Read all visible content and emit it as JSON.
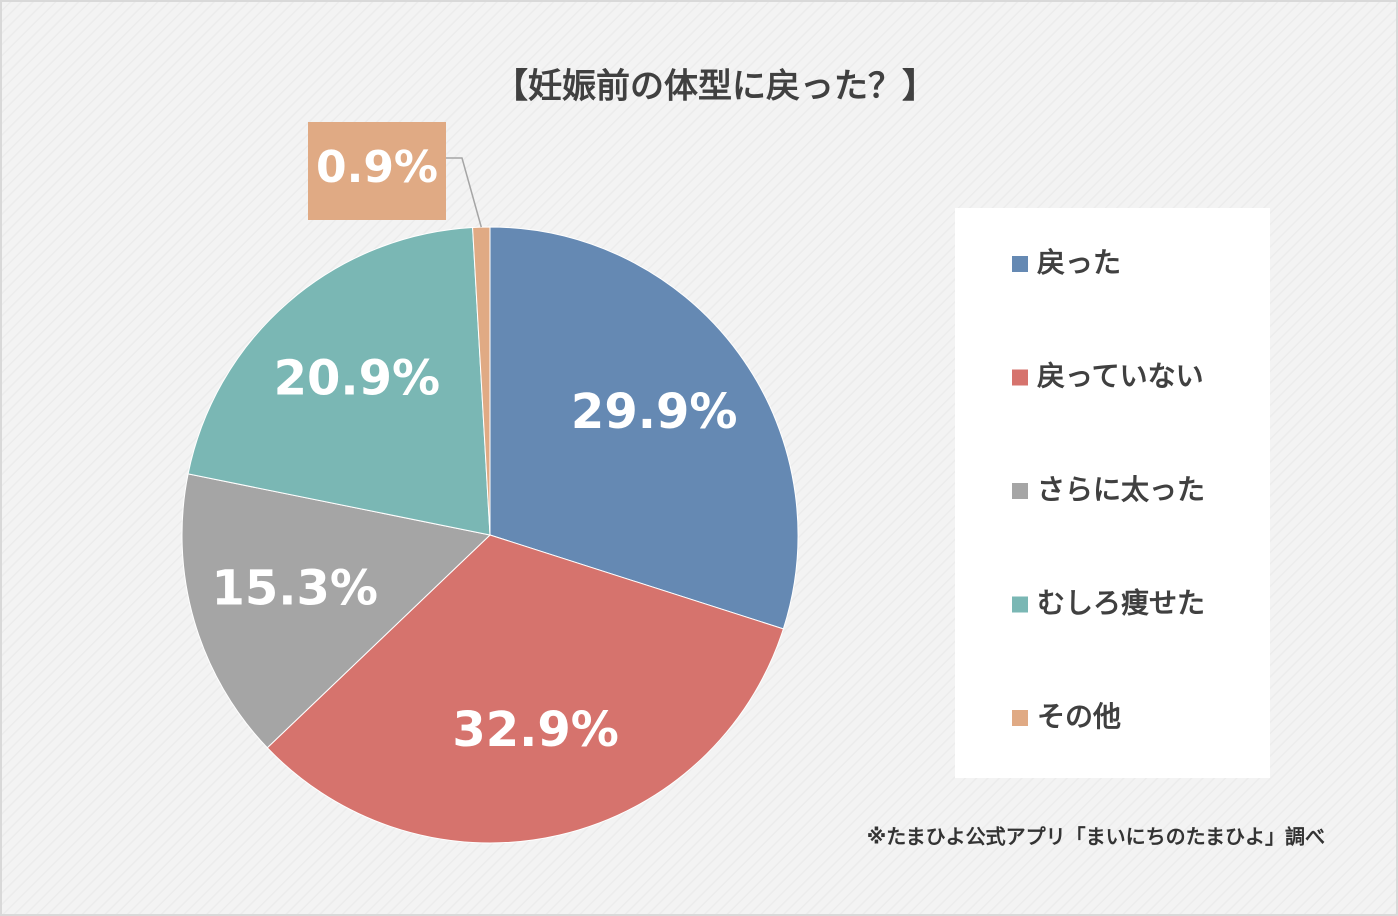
{
  "chart_data": {
    "type": "pie",
    "title": "【妊娠前の体型に戻った？】",
    "categories": [
      "戻った",
      "戻っていない",
      "さらに太った",
      "むしろ痩せた",
      "その他"
    ],
    "values": [
      29.9,
      32.9,
      15.3,
      20.9,
      0.9
    ],
    "value_labels": [
      "29.9%",
      "32.9%",
      "15.3%",
      "20.9%",
      "0.9%"
    ],
    "colors": [
      "#6589b3",
      "#d6736d",
      "#a5a5a5",
      "#7ab7b4",
      "#e0aa84"
    ],
    "legend": "right",
    "source": "※たまひよ公式アプリ「まいにちのたまひよ」調べ"
  }
}
